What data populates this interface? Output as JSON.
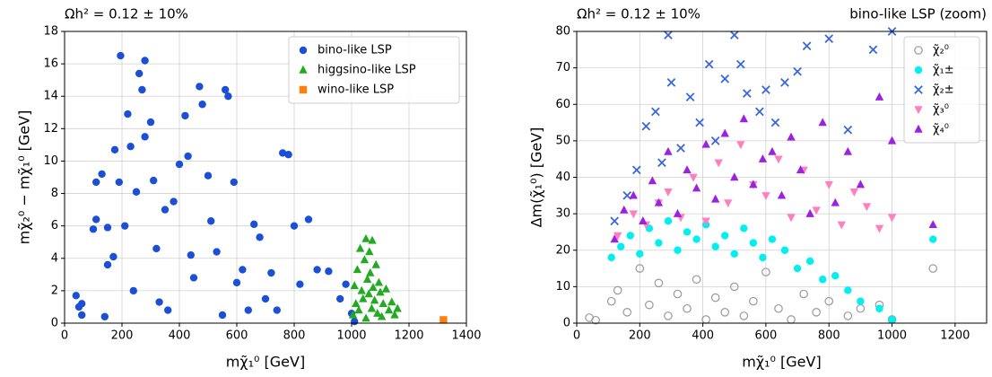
{
  "chart_data": [
    {
      "type": "scatter",
      "title": "Ωh² = 0.12 ± 10%",
      "x_label": "mχ̃₁⁰ [GeV]",
      "y_label": "mχ̃₂⁰ − mχ̃₁⁰ [GeV]",
      "xlim": [
        0,
        1400
      ],
      "ylim": [
        0,
        18
      ],
      "xticks": [
        0,
        200,
        400,
        600,
        800,
        1000,
        1200,
        1400
      ],
      "yticks": [
        0,
        2,
        4,
        6,
        8,
        10,
        12,
        14,
        16,
        18
      ],
      "grid": true,
      "legend": "upper right",
      "series": [
        {
          "name": "bino-like LSP",
          "color": "#1a4fd6",
          "marker": "circle",
          "x": [
            40,
            50,
            60,
            60,
            100,
            110,
            110,
            130,
            140,
            150,
            150,
            170,
            175,
            190,
            195,
            210,
            220,
            230,
            240,
            250,
            260,
            270,
            280,
            280,
            300,
            310,
            320,
            330,
            350,
            360,
            380,
            400,
            420,
            430,
            440,
            450,
            470,
            480,
            500,
            510,
            530,
            550,
            560,
            570,
            590,
            600,
            620,
            640,
            660,
            680,
            700,
            720,
            740,
            760,
            780,
            800,
            820,
            850,
            880,
            920,
            960,
            980,
            1000,
            1010
          ],
          "values": [
            1.7,
            1,
            0.5,
            1.2,
            5.8,
            8.7,
            6.4,
            9.2,
            0.4,
            5.9,
            3.6,
            4.1,
            10.7,
            8.7,
            16.5,
            6,
            12.9,
            10.9,
            2,
            8.1,
            15.4,
            14.4,
            16.2,
            11.5,
            12.4,
            8.8,
            4.6,
            1.3,
            7,
            0.8,
            7.5,
            9.8,
            12.8,
            10.3,
            4.2,
            2.8,
            14.6,
            13.5,
            9.1,
            6.3,
            4.4,
            0.5,
            14.4,
            14,
            8.7,
            2.5,
            3.3,
            0.8,
            6.1,
            5.3,
            1.5,
            3.1,
            0.8,
            10.5,
            10.4,
            6,
            2.4,
            6.4,
            3.3,
            3.2,
            1.5,
            2.4,
            0.6,
            0.1
          ]
        },
        {
          "name": "higgsino-like LSP",
          "color": "#22aa22",
          "marker": "triangle",
          "x": [
            1005,
            1010,
            1015,
            1020,
            1025,
            1030,
            1035,
            1040,
            1045,
            1050,
            1050,
            1055,
            1060,
            1062,
            1065,
            1070,
            1072,
            1075,
            1080,
            1085,
            1090,
            1095,
            1100,
            1105,
            1110,
            1120,
            1130,
            1140,
            1150,
            1160
          ],
          "values": [
            0.5,
            2.3,
            1.2,
            3.3,
            0.8,
            4.6,
            2,
            1.5,
            3.9,
            5.2,
            0.3,
            2.7,
            1.8,
            4.4,
            3.1,
            0.9,
            5.1,
            2.2,
            1.4,
            3.6,
            0.6,
            2.5,
            1.9,
            0.4,
            1.2,
            2.1,
            0.8,
            1.3,
            0.5,
            0.9
          ]
        },
        {
          "name": "wino-like LSP",
          "color": "#ff7f0e",
          "marker": "square",
          "x": [
            1320
          ],
          "values": [
            0.2
          ]
        }
      ]
    },
    {
      "type": "scatter",
      "title": "Ωh² = 0.12 ± 10%",
      "annotation": "bino-like LSP (zoom)",
      "x_label": "mχ̃₁⁰ [GeV]",
      "y_label": "Δm(χ̃₁⁰) [GeV]",
      "xlim": [
        0,
        1300
      ],
      "ylim": [
        0,
        80
      ],
      "xticks": [
        0,
        200,
        400,
        600,
        800,
        1000,
        1200
      ],
      "yticks": [
        0,
        10,
        20,
        30,
        40,
        50,
        60,
        70,
        80
      ],
      "grid": true,
      "legend": "upper right",
      "series": [
        {
          "name": "χ̃₂⁰",
          "color": "#999999",
          "marker": "open-circle",
          "x": [
            40,
            60,
            110,
            130,
            160,
            200,
            230,
            260,
            290,
            320,
            350,
            380,
            410,
            440,
            470,
            500,
            530,
            560,
            600,
            640,
            680,
            720,
            760,
            800,
            860,
            900,
            960,
            1000,
            1130
          ],
          "values": [
            1.5,
            0.8,
            6,
            9,
            3,
            15,
            5,
            11,
            2,
            8,
            4,
            12,
            1,
            7,
            3,
            10,
            2,
            6,
            14,
            4,
            1,
            8,
            3,
            6,
            2,
            4,
            5,
            1,
            15
          ]
        },
        {
          "name": "χ̃₁±",
          "color": "#00f0f0",
          "marker": "circle",
          "x": [
            110,
            140,
            170,
            200,
            230,
            260,
            290,
            320,
            350,
            380,
            410,
            440,
            470,
            500,
            530,
            560,
            590,
            620,
            660,
            700,
            740,
            780,
            820,
            860,
            900,
            960,
            1000,
            1130
          ],
          "values": [
            18,
            21,
            24,
            19,
            26,
            22,
            28,
            20,
            25,
            23,
            27,
            21,
            24,
            19,
            26,
            22,
            18,
            23,
            20,
            15,
            17,
            12,
            13,
            9,
            6,
            4,
            1,
            23
          ]
        },
        {
          "name": "χ̃₂±",
          "color": "#3b66d9",
          "marker": "x",
          "x": [
            120,
            160,
            190,
            220,
            250,
            270,
            290,
            300,
            330,
            360,
            390,
            420,
            440,
            470,
            500,
            520,
            540,
            580,
            600,
            630,
            660,
            700,
            730,
            800,
            860,
            940,
            1000
          ],
          "values": [
            28,
            35,
            42,
            54,
            58,
            44,
            79,
            66,
            48,
            62,
            55,
            71,
            50,
            67,
            79,
            71,
            63,
            58,
            64,
            55,
            66,
            69,
            76,
            78,
            53,
            75,
            80
          ]
        },
        {
          "name": "χ̃₃⁰",
          "color": "#ff7fbf",
          "marker": "down-triangle",
          "x": [
            130,
            180,
            220,
            260,
            290,
            330,
            370,
            410,
            450,
            480,
            520,
            560,
            600,
            640,
            680,
            720,
            760,
            800,
            840,
            880,
            920,
            960,
            1000
          ],
          "values": [
            24,
            30,
            27,
            33,
            36,
            29,
            40,
            28,
            44,
            33,
            49,
            38,
            35,
            45,
            29,
            42,
            31,
            38,
            27,
            36,
            32,
            26,
            29
          ]
        },
        {
          "name": "χ̃₄⁰",
          "color": "#9b22e0",
          "marker": "triangle",
          "x": [
            120,
            150,
            180,
            210,
            240,
            260,
            290,
            320,
            350,
            380,
            410,
            440,
            470,
            500,
            530,
            560,
            590,
            620,
            650,
            680,
            710,
            740,
            780,
            820,
            860,
            900,
            960,
            1000,
            1130
          ],
          "values": [
            23,
            31,
            35,
            28,
            39,
            33,
            47,
            30,
            42,
            37,
            49,
            34,
            52,
            40,
            56,
            38,
            45,
            47,
            35,
            51,
            42,
            30,
            55,
            33,
            47,
            38,
            62,
            50,
            27
          ]
        }
      ]
    }
  ]
}
